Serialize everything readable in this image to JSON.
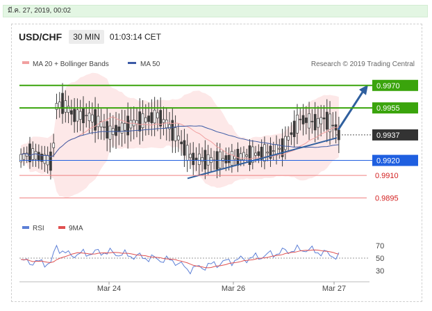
{
  "timestamp": "มี.ค. 27, 2019, 00:02",
  "header": {
    "symbol": "USD/CHF",
    "timeframe": "30 MIN",
    "clock": "01:03:14 CET"
  },
  "legend": {
    "ma20_label": "MA 20 + Bollinger Bands",
    "ma50_label": "MA 50",
    "credit": "Research © 2019 Trading Central",
    "rsi_label": "RSI",
    "ma9_label": "9MA"
  },
  "colors": {
    "resistance": "#3aa40c",
    "support": "#1f5fe0",
    "level_red": "#f08080",
    "current": "#333333",
    "arrow": "#2f5f9e",
    "band": "#fbd9d9",
    "ma20": "#f1a0a0",
    "ma50": "#3b5aa6",
    "candle": "#3a3a3a",
    "rsi": "#5c7fd6",
    "ma9": "#e05050"
  },
  "chart_data": {
    "type": "candlestick",
    "xlabels": [
      "Mar 24",
      "Mar 26",
      "Mar 27"
    ],
    "ylim": [
      0.9885,
      0.9975
    ],
    "levels": [
      {
        "value": "0.9970",
        "style": "box-green",
        "line": "green"
      },
      {
        "value": "0.9955",
        "style": "box-green",
        "line": "green"
      },
      {
        "value": "0.9937",
        "style": "box-dark",
        "line": "dotted"
      },
      {
        "value": "0.9920",
        "style": "box-blue",
        "line": "blue"
      },
      {
        "value": "0.9910",
        "style": "text-red",
        "line": "red"
      },
      {
        "value": "0.9895",
        "style": "text-red",
        "line": "red"
      }
    ],
    "rsi": {
      "ylim": [
        20,
        80
      ],
      "ticks": [
        "70",
        "50",
        "30"
      ]
    }
  }
}
